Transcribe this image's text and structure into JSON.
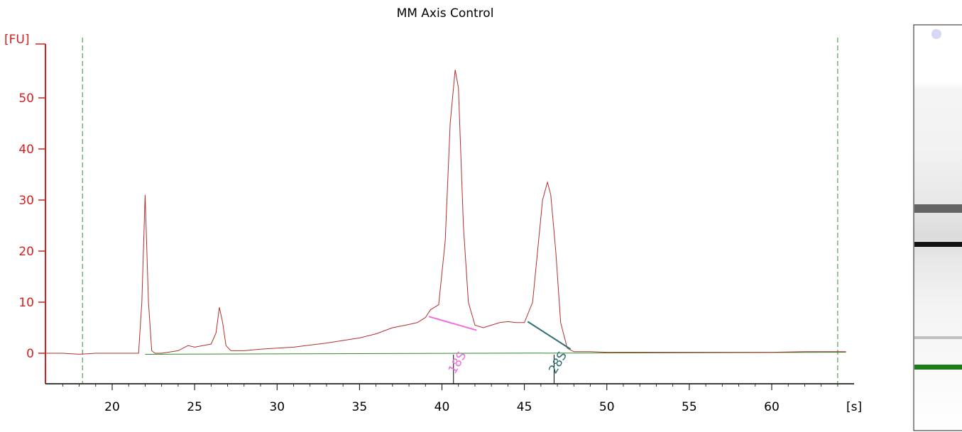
{
  "chart_data": {
    "type": "line",
    "title": "MM Axis Control",
    "ylabel": "[FU]",
    "xlabel": "[s]",
    "xlim": [
      16,
      64.5
    ],
    "ylim": [
      -6,
      59
    ],
    "xticks": [
      20,
      25,
      30,
      35,
      40,
      45,
      50,
      55,
      60
    ],
    "yticks": [
      0,
      10,
      20,
      30,
      40,
      50
    ],
    "colors": {
      "trace": "#b2302b",
      "axis_y": "#d42020",
      "baseline": "#2e8b2e",
      "marker": "#2e8b2e",
      "label_18s": "#ee6ee0",
      "label_28s": "#2f7070"
    },
    "series": [
      {
        "x": [
          16,
          17,
          18,
          19,
          20,
          21,
          21.6,
          21.8,
          22,
          22.2,
          22.4,
          22.6,
          23,
          24,
          24.6,
          25,
          25.5,
          26,
          26.3,
          26.5,
          26.7,
          26.9,
          27.2,
          28,
          29,
          30,
          31,
          32,
          33,
          34,
          35,
          36,
          37,
          37.8,
          38.5,
          39,
          39.3,
          39.8,
          40.2,
          40.5,
          40.8,
          41.0,
          41.3,
          41.6,
          42,
          42.5,
          43,
          43.5,
          44,
          44.5,
          45,
          45.5,
          45.8,
          46.1,
          46.4,
          46.6,
          46.9,
          47.2,
          47.6,
          48,
          49,
          50,
          52,
          55,
          58,
          60,
          62,
          64.5
        ],
        "values": [
          0,
          0,
          -0.2,
          0,
          0,
          0,
          0,
          10,
          31,
          10,
          0.5,
          0,
          0,
          0.5,
          1.5,
          1.2,
          1.5,
          1.8,
          4,
          9,
          6,
          1.5,
          0.5,
          0.5,
          0.8,
          1.0,
          1.2,
          1.6,
          2.0,
          2.5,
          3.0,
          3.8,
          5.0,
          5.5,
          6.0,
          7.0,
          8.5,
          9.5,
          22,
          45,
          55.5,
          52,
          25,
          10,
          5.5,
          5,
          5.5,
          6,
          6.2,
          6,
          6,
          10,
          20,
          30,
          33.5,
          31,
          20,
          6,
          1,
          0.3,
          0.3,
          0.2,
          0.2,
          0.2,
          0.2,
          0.2,
          0.3,
          0.3
        ]
      }
    ],
    "markers": [
      18.2,
      64
    ],
    "annotations": [
      {
        "text": "18S",
        "x": 40.7,
        "color": "#ee6ee0",
        "segment": [
          [
            39.2,
            7.2
          ],
          [
            42.1,
            4.5
          ]
        ]
      },
      {
        "text": "28S",
        "x": 46.8,
        "color": "#2f7070",
        "segment": [
          [
            45.2,
            6.2
          ],
          [
            47.8,
            0.8
          ]
        ]
      }
    ]
  }
}
